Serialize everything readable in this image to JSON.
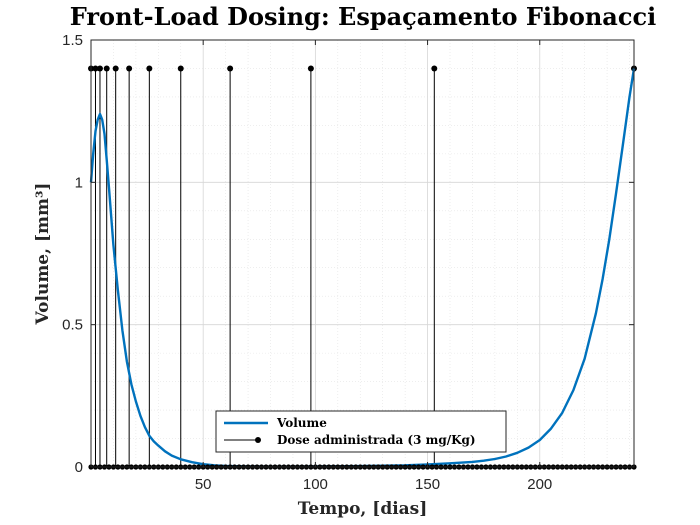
{
  "chart_data": {
    "type": "line",
    "title": "Front-Load Dosing: Espaçamento Fibonacci",
    "xlabel": "Tempo, [dias]",
    "ylabel": "Volume, [mm³]",
    "xlim": [
      0,
      242
    ],
    "ylim": [
      0,
      1.5
    ],
    "xticks": [
      50,
      100,
      150,
      200
    ],
    "yticks": [
      0,
      0.5,
      1,
      1.5
    ],
    "grid": true,
    "minor_grid": true,
    "legend_position": "bottom-center",
    "series": [
      {
        "name": "Volume",
        "style": "line",
        "color": "#0072BD",
        "x": [
          0,
          1,
          2,
          3,
          4,
          5,
          6,
          7,
          8,
          9,
          10,
          12,
          14,
          16,
          18,
          20,
          22,
          24,
          26,
          28,
          30,
          33,
          36,
          40,
          45,
          50,
          55,
          60,
          70,
          80,
          100,
          120,
          140,
          150,
          160,
          170,
          175,
          180,
          185,
          190,
          195,
          200,
          205,
          210,
          215,
          220,
          225,
          228,
          231,
          234,
          237,
          240,
          242
        ],
        "y": [
          1.0,
          1.1,
          1.18,
          1.22,
          1.24,
          1.22,
          1.17,
          1.08,
          0.98,
          0.88,
          0.78,
          0.62,
          0.48,
          0.37,
          0.29,
          0.23,
          0.18,
          0.14,
          0.11,
          0.09,
          0.075,
          0.055,
          0.04,
          0.027,
          0.017,
          0.01,
          0.006,
          0.004,
          0.002,
          0.001,
          0.002,
          0.003,
          0.006,
          0.009,
          0.013,
          0.018,
          0.022,
          0.028,
          0.037,
          0.05,
          0.068,
          0.095,
          0.135,
          0.19,
          0.27,
          0.38,
          0.54,
          0.66,
          0.8,
          0.96,
          1.13,
          1.3,
          1.4
        ]
      },
      {
        "name": "Dose administrada (3 mg/Kg)",
        "style": "stem",
        "color": "#000000",
        "dose_value": 1.4,
        "dose_days": [
          0,
          2,
          4,
          7,
          11,
          17,
          26,
          40,
          62,
          98,
          153,
          242
        ]
      }
    ]
  }
}
